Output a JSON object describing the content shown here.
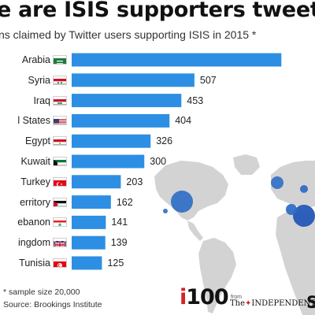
{
  "header": {
    "title": "e are ISIS supporters tweeting from?",
    "subtitle": "ns claimed by Twitter users supporting ISIS in 2015 *"
  },
  "chart_data": {
    "type": "bar",
    "orientation": "horizontal",
    "title": "e are ISIS supporters tweeting from?",
    "subtitle": "ns claimed by Twitter users supporting ISIS in 2015 *",
    "categories": [
      "Arabia",
      "Syria",
      "Iraq",
      "l States",
      "Egypt",
      "Kuwait",
      "Turkey",
      "erritory",
      "ebanon",
      "ingdom",
      "Tunisia"
    ],
    "values": [
      866,
      507,
      453,
      404,
      326,
      300,
      203,
      162,
      141,
      139,
      125
    ],
    "value_labels": [
      "",
      "507",
      "453",
      "404",
      "326",
      "300",
      "203",
      "162",
      "141",
      "139",
      "125"
    ],
    "flags": [
      "saudi-flag",
      "syria-flag",
      "iraq-flag",
      "usa-flag",
      "egypt-flag",
      "kuwait-flag",
      "turkey-flag",
      "palestine-flag",
      "lebanon-flag",
      "uk-flag",
      "tunisia-flag"
    ],
    "xlim": [
      0,
      866
    ],
    "bar_color": "#2d8fe3",
    "grid": false,
    "legend": "none"
  },
  "footer": {
    "note": "* sample size 20,000",
    "source": "Source: Brookings Institute",
    "logo_i": "i",
    "logo_num": "100",
    "from": "from",
    "publisher_the": "The",
    "publisher_name": "INDEPENDENT",
    "logo_s": "S"
  },
  "colors": {
    "bar": "#2d8fe3",
    "map_land": "#d3d3d3",
    "map_bubble": "#2f6ec4",
    "brand_red": "#d71f26",
    "text": "#111111"
  }
}
